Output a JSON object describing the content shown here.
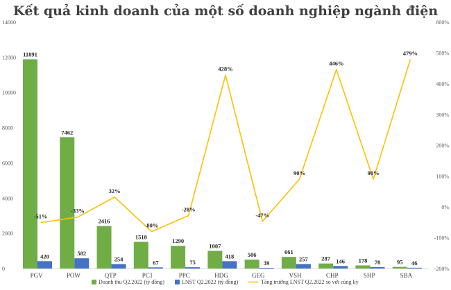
{
  "chart_data": {
    "type": "bar",
    "title": "Kết quả kinh doanh của một số doanh nghiệp ngành điện",
    "categories": [
      "PGV",
      "POW",
      "QTP",
      "PC1",
      "PPC",
      "HDG",
      "GEG",
      "VSH",
      "CHP",
      "SHP",
      "SBA"
    ],
    "series": [
      {
        "name": "Doanh thu Q2.2022 (tỷ đồng)",
        "kind": "bar",
        "axis": "left",
        "color": "#70AD47",
        "values": [
          11891,
          7462,
          2416,
          1518,
          1290,
          1007,
          506,
          661,
          287,
          178,
          95
        ]
      },
      {
        "name": "LNST Q2.2022 (tỷ đồng)",
        "kind": "bar",
        "axis": "left",
        "color": "#4472C4",
        "values": [
          420,
          582,
          254,
          67,
          75,
          418,
          39,
          257,
          146,
          78,
          46
        ]
      },
      {
        "name": "Tăng trưởng LNST Q2.2022 so với cùng kỳ",
        "kind": "line",
        "axis": "right",
        "color": "#FFC000",
        "values": [
          -51,
          -33,
          32,
          -80,
          -28,
          428,
          -47,
          90,
          446,
          90,
          479
        ],
        "labels": [
          "-51%",
          "-33%",
          "32%",
          "-80%",
          "-28%",
          "428%",
          "-47%",
          "90%",
          "446%",
          "90%",
          "479%"
        ]
      }
    ],
    "y_left": {
      "min": 0,
      "max": 14000,
      "ticks": [
        0,
        2000,
        4000,
        6000,
        8000,
        10000,
        12000,
        14000
      ],
      "tick_labels": [
        "0",
        "2000",
        "4000",
        "6000",
        "8000",
        "10000",
        "12000",
        "14000"
      ]
    },
    "y_right": {
      "min": -200,
      "max": 600,
      "ticks": [
        -200,
        -100,
        0,
        100,
        200,
        300,
        400,
        500,
        600
      ],
      "tick_labels": [
        "-200%",
        "-100%",
        "0%",
        "100%",
        "200%",
        "300%",
        "400%",
        "500%",
        "600%"
      ]
    },
    "grid": false,
    "legend_position": "bottom"
  }
}
